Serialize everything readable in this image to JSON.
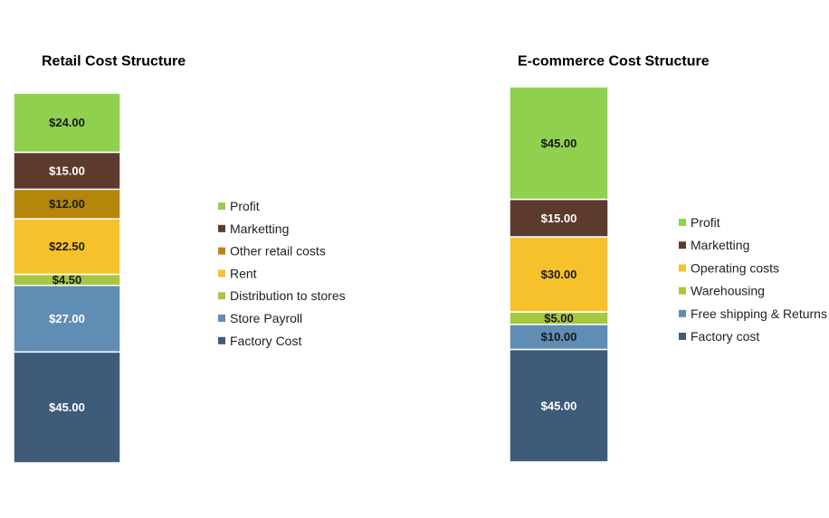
{
  "chart_data": [
    {
      "type": "bar",
      "stacked": true,
      "title": "Retail Cost Structure",
      "total": 150,
      "series": [
        {
          "name": "Factory Cost",
          "value": 45.0,
          "label": "$45.00",
          "color": "#3e5c7a",
          "text_color": "#ffffff"
        },
        {
          "name": "Store Payroll",
          "value": 27.0,
          "label": "$27.00",
          "color": "#5f8db3",
          "text_color": "#ffffff"
        },
        {
          "name": "Distribution to stores",
          "value": 4.5,
          "label": "$4.50",
          "color": "#a6c73f",
          "text_color": "#1a1a1a"
        },
        {
          "name": "Rent",
          "value": 22.5,
          "label": "$22.50",
          "color": "#f6c12b",
          "text_color": "#1a1a1a"
        },
        {
          "name": "Other retail costs",
          "value": 12.0,
          "label": "$12.00",
          "color": "#b5860a",
          "text_color": "#1a1a1a"
        },
        {
          "name": "Marketting",
          "value": 15.0,
          "label": "$15.00",
          "color": "#5c3b2e",
          "text_color": "#ffffff"
        },
        {
          "name": "Profit",
          "value": 24.0,
          "label": "$24.00",
          "color": "#8fd04f",
          "text_color": "#1a1a1a"
        }
      ]
    },
    {
      "type": "bar",
      "stacked": true,
      "title": "E-commerce Cost Structure",
      "total": 150,
      "series": [
        {
          "name": "Factory cost",
          "value": 45.0,
          "label": "$45.00",
          "color": "#3e5c7a",
          "text_color": "#ffffff"
        },
        {
          "name": "Free shipping & Returns",
          "value": 10.0,
          "label": "$10.00",
          "color": "#5f8db3",
          "text_color": "#1a1a1a"
        },
        {
          "name": "Warehousing",
          "value": 5.0,
          "label": "$5.00",
          "color": "#a6c73f",
          "text_color": "#1a1a1a"
        },
        {
          "name": "Operating costs",
          "value": 30.0,
          "label": "$30.00",
          "color": "#f6c12b",
          "text_color": "#1a1a1a"
        },
        {
          "name": "Marketting",
          "value": 15.0,
          "label": "$15.00",
          "color": "#5c3b2e",
          "text_color": "#ffffff"
        },
        {
          "name": "Profit",
          "value": 45.0,
          "label": "$45.00",
          "color": "#8fd04f",
          "text_color": "#1a1a1a"
        }
      ]
    }
  ]
}
